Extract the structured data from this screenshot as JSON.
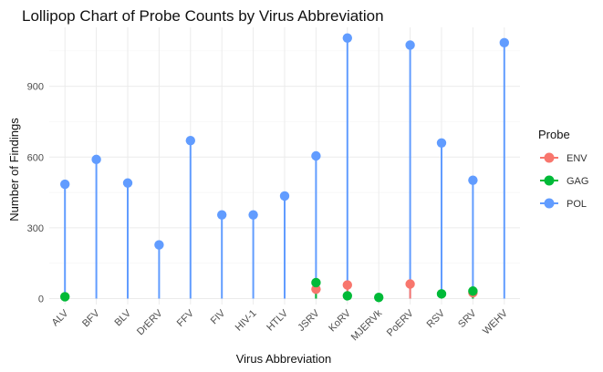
{
  "chart_data": {
    "type": "lollipop",
    "title": "Lollipop Chart of Probe Counts by Virus Abbreviation",
    "xlabel": "Virus Abbreviation",
    "ylabel": "Number of Findings",
    "categories": [
      "ALV",
      "BFV",
      "BLV",
      "DrERV",
      "FFV",
      "FIV",
      "HIV-1",
      "HTLV",
      "JSRV",
      "KoRV",
      "MJERVk",
      "PoERV",
      "RSV",
      "SRV",
      "WEHV"
    ],
    "y_ticks": [
      0,
      300,
      600,
      900
    ],
    "ylim": [
      -25,
      1150
    ],
    "grid": true,
    "legend": {
      "title": "Probe",
      "position": "right"
    },
    "series": [
      {
        "name": "POL",
        "color": "#619CFF",
        "values": [
          485,
          590,
          490,
          228,
          670,
          355,
          355,
          435,
          605,
          1105,
          null,
          1075,
          660,
          502,
          1085
        ]
      },
      {
        "name": "ENV",
        "color": "#F8766D",
        "values": [
          null,
          null,
          null,
          null,
          null,
          null,
          null,
          null,
          40,
          58,
          null,
          62,
          null,
          25,
          null
        ]
      },
      {
        "name": "GAG",
        "color": "#00BA38",
        "values": [
          8,
          null,
          null,
          null,
          null,
          null,
          null,
          null,
          68,
          12,
          5,
          null,
          20,
          32,
          null
        ]
      }
    ],
    "legend_order": [
      "ENV",
      "GAG",
      "POL"
    ],
    "draw_order": [
      "POL",
      "ENV",
      "GAG"
    ]
  }
}
